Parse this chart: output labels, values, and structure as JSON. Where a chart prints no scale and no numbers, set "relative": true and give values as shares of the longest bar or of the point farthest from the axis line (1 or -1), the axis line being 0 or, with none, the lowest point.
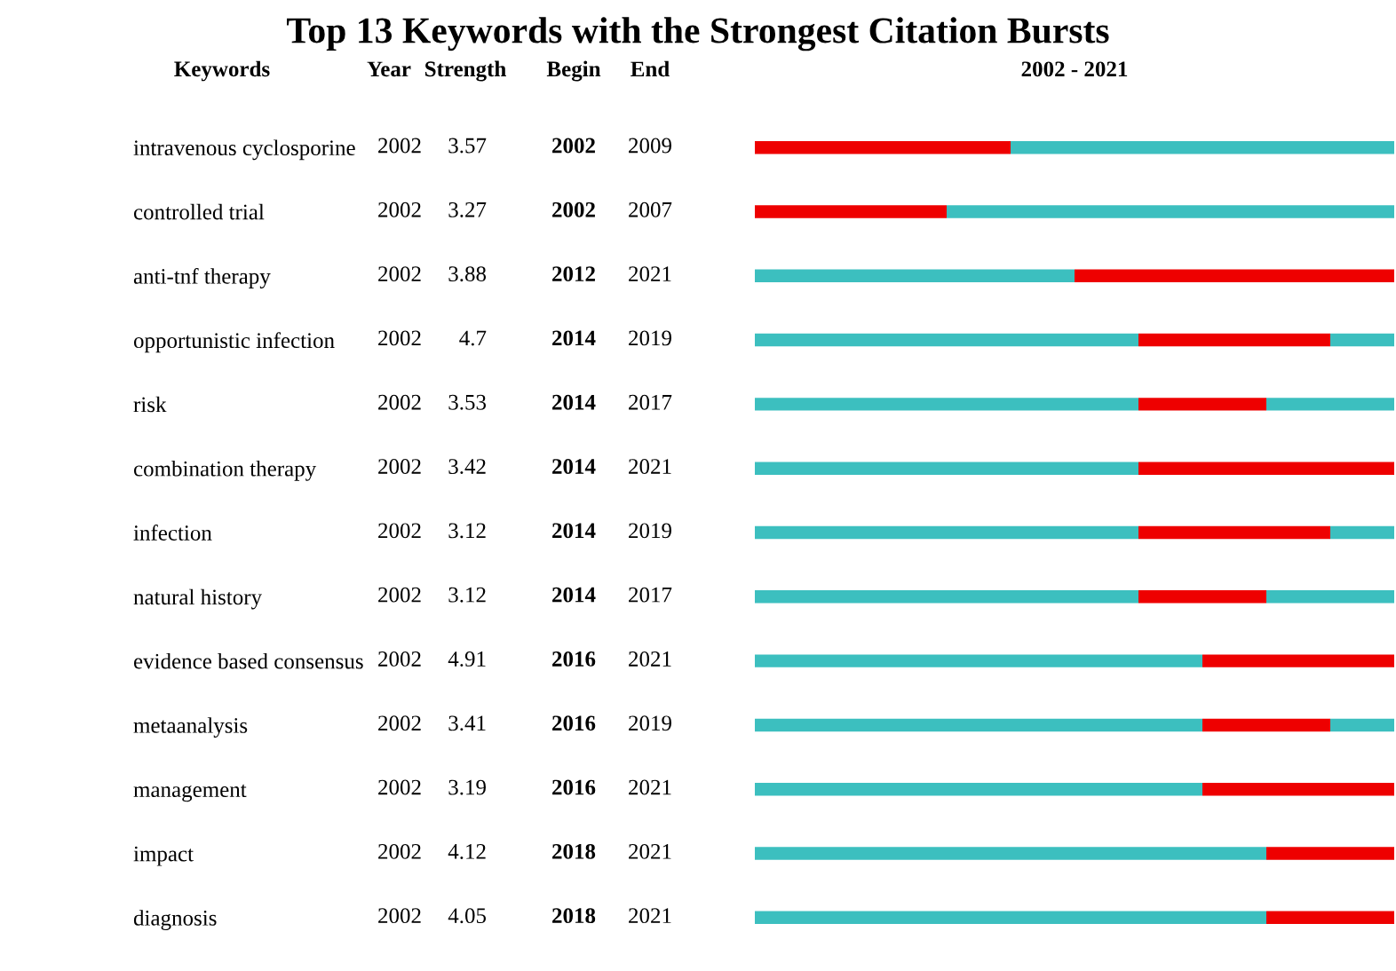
{
  "chart_data": {
    "type": "bar",
    "orientation": "horizontal",
    "stacked": true,
    "relative": true,
    "title": "Top 13 Keywords with the Strongest Citation Bursts",
    "xlabel": "2002 - 2021",
    "ylabel": "Keywords",
    "categories": [
      "intravenous cyclosporine",
      "controlled trial",
      "anti-tnf therapy",
      "opportunistic infection",
      "risk",
      "combination therapy",
      "infection",
      "natural history",
      "evidence based consensus",
      "metaanalysis",
      "management",
      "impact",
      "diagnosis"
    ],
    "series": [
      {
        "color": "#3cbfbf",
        "values": [
          0,
          0,
          0.5,
          0.6,
          0.6,
          0.6,
          0.6,
          0.6,
          0.7,
          0.7,
          0.7,
          0.8,
          0.8
        ]
      },
      {
        "color": "#ee0000",
        "values": [
          0.4,
          0.3,
          0.5,
          0.3,
          0.2,
          0.4,
          0.3,
          0.2,
          0.3,
          0.2,
          0.3,
          0.2,
          0.2
        ]
      },
      {
        "color": "#3cbfbf",
        "values": [
          0.6,
          0.7,
          0,
          0.1,
          0.2,
          0,
          0.1,
          0.2,
          0,
          0.1,
          0,
          0,
          0
        ]
      }
    ],
    "tick_labels": "y",
    "annotations": [
      "Year",
      "Strength",
      "Begin",
      "End",
      "2002",
      "3.57",
      "2002",
      "2009",
      "2002",
      "3.27",
      "2002",
      "2007",
      "2002",
      "3.88",
      "2012",
      "2021",
      "2002",
      "4.7",
      "2014",
      "2019",
      "2002",
      "3.53",
      "2014",
      "2017",
      "2002",
      "3.42",
      "2014",
      "2021",
      "2002",
      "3.12",
      "2014",
      "2019",
      "2002",
      "3.12",
      "2014",
      "2017",
      "2002",
      "4.91",
      "2016",
      "2021",
      "2002",
      "3.41",
      "2016",
      "2019",
      "2002",
      "3.19",
      "2016",
      "2021",
      "2002",
      "4.12",
      "2018",
      "2021",
      "2002",
      "4.05",
      "2018",
      "2021"
    ]
  }
}
